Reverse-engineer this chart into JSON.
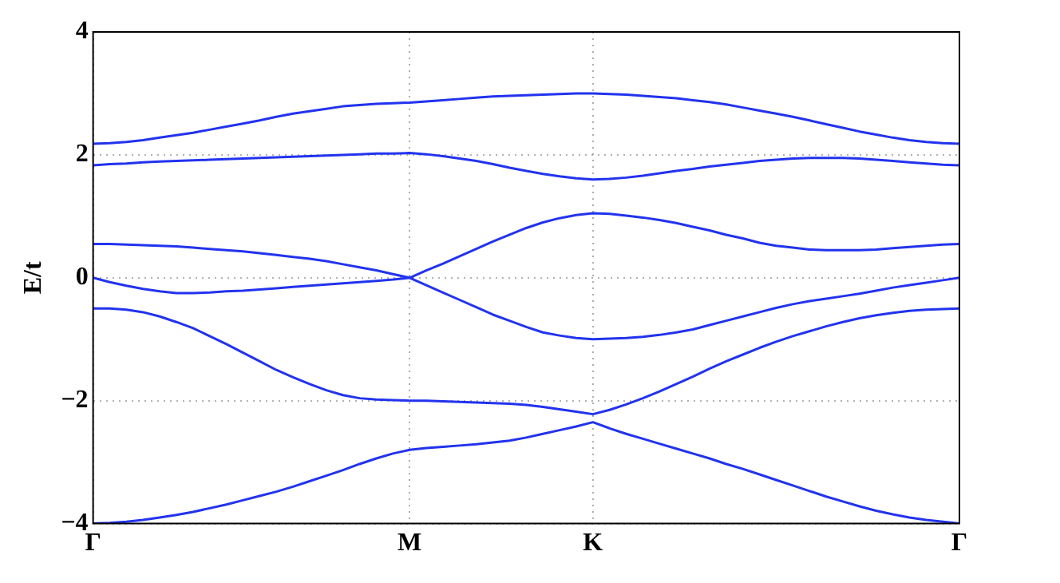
{
  "chart_data": {
    "type": "line",
    "ylabel": "E/t",
    "ylim": [
      -4,
      4
    ],
    "categories": [
      "Γ",
      null,
      null,
      null,
      null,
      null,
      null,
      null,
      null,
      null,
      null,
      null,
      null,
      null,
      null,
      null,
      null,
      null,
      null,
      "M",
      null,
      null,
      null,
      null,
      null,
      null,
      null,
      null,
      null,
      null,
      "K",
      null,
      null,
      null,
      null,
      null,
      null,
      null,
      null,
      null,
      null,
      null,
      null,
      null,
      null,
      null,
      null,
      null,
      null,
      null,
      null,
      null,
      "Γ"
    ],
    "yticks": [
      {
        "value": -4,
        "label": "−4"
      },
      {
        "value": -2,
        "label": "−2"
      },
      0,
      2,
      4
    ],
    "grid": true,
    "legend": false,
    "marker": "none",
    "line_style": "solid",
    "series": [
      {
        "color": "#2233ee",
        "values": [
          2.18,
          2.19,
          2.21,
          2.24,
          2.28,
          2.32,
          2.36,
          2.41,
          2.46,
          2.51,
          2.56,
          2.62,
          2.67,
          2.71,
          2.75,
          2.79,
          2.81,
          2.83,
          2.84,
          2.85,
          2.87,
          2.89,
          2.91,
          2.93,
          2.95,
          2.96,
          2.97,
          2.98,
          2.99,
          3.0,
          3.0,
          2.99,
          2.98,
          2.96,
          2.94,
          2.92,
          2.89,
          2.86,
          2.82,
          2.77,
          2.72,
          2.67,
          2.62,
          2.56,
          2.5,
          2.44,
          2.38,
          2.33,
          2.28,
          2.24,
          2.21,
          2.19,
          2.18
        ]
      },
      {
        "color": "#2233ee",
        "values": [
          1.83,
          1.85,
          1.86,
          1.88,
          1.89,
          1.9,
          1.91,
          1.92,
          1.93,
          1.94,
          1.95,
          1.96,
          1.97,
          1.98,
          1.99,
          2.0,
          2.01,
          2.02,
          2.02,
          2.03,
          2.01,
          1.98,
          1.94,
          1.9,
          1.85,
          1.79,
          1.74,
          1.69,
          1.65,
          1.62,
          1.6,
          1.61,
          1.63,
          1.66,
          1.7,
          1.74,
          1.77,
          1.81,
          1.84,
          1.87,
          1.9,
          1.92,
          1.94,
          1.95,
          1.95,
          1.95,
          1.94,
          1.92,
          1.9,
          1.88,
          1.86,
          1.84,
          1.83
        ]
      },
      {
        "color": "#2233ee",
        "values": [
          0.55,
          0.55,
          0.54,
          0.53,
          0.52,
          0.51,
          0.49,
          0.47,
          0.45,
          0.43,
          0.4,
          0.37,
          0.34,
          0.31,
          0.27,
          0.22,
          0.17,
          0.12,
          0.06,
          0.0,
          0.12,
          0.23,
          0.35,
          0.47,
          0.59,
          0.7,
          0.81,
          0.9,
          0.97,
          1.02,
          1.05,
          1.04,
          1.01,
          0.98,
          0.94,
          0.89,
          0.83,
          0.77,
          0.7,
          0.64,
          0.57,
          0.52,
          0.49,
          0.46,
          0.45,
          0.45,
          0.45,
          0.46,
          0.48,
          0.5,
          0.52,
          0.54,
          0.55
        ]
      },
      {
        "color": "#2233ee",
        "values": [
          0,
          -0.07,
          -0.13,
          -0.18,
          -0.22,
          -0.25,
          -0.25,
          -0.24,
          -0.22,
          -0.21,
          -0.19,
          -0.17,
          -0.15,
          -0.13,
          -0.11,
          -0.09,
          -0.07,
          -0.05,
          -0.03,
          0,
          -0.12,
          -0.24,
          -0.36,
          -0.48,
          -0.6,
          -0.7,
          -0.8,
          -0.89,
          -0.94,
          -0.98,
          -1.0,
          -0.99,
          -0.98,
          -0.96,
          -0.93,
          -0.89,
          -0.84,
          -0.77,
          -0.7,
          -0.63,
          -0.56,
          -0.49,
          -0.43,
          -0.38,
          -0.34,
          -0.3,
          -0.26,
          -0.21,
          -0.16,
          -0.12,
          -0.08,
          -0.04,
          0
        ]
      },
      {
        "color": "#2233ee",
        "values": [
          -0.5,
          -0.5,
          -0.52,
          -0.56,
          -0.63,
          -0.72,
          -0.82,
          -0.95,
          -1.08,
          -1.22,
          -1.36,
          -1.5,
          -1.62,
          -1.73,
          -1.83,
          -1.91,
          -1.96,
          -1.98,
          -1.99,
          -2.0,
          -2.0,
          -2.01,
          -2.02,
          -2.03,
          -2.04,
          -2.05,
          -2.07,
          -2.1,
          -2.14,
          -2.18,
          -2.22,
          -2.15,
          -2.06,
          -1.96,
          -1.85,
          -1.73,
          -1.61,
          -1.48,
          -1.36,
          -1.25,
          -1.14,
          -1.04,
          -0.95,
          -0.87,
          -0.79,
          -0.72,
          -0.66,
          -0.61,
          -0.57,
          -0.54,
          -0.52,
          -0.51,
          -0.5
        ]
      },
      {
        "color": "#2233ee",
        "values": [
          -4,
          -3.99,
          -3.97,
          -3.94,
          -3.9,
          -3.86,
          -3.81,
          -3.75,
          -3.69,
          -3.62,
          -3.55,
          -3.48,
          -3.4,
          -3.31,
          -3.22,
          -3.13,
          -3.03,
          -2.94,
          -2.86,
          -2.8,
          -2.77,
          -2.75,
          -2.73,
          -2.71,
          -2.68,
          -2.65,
          -2.6,
          -2.54,
          -2.48,
          -2.42,
          -2.35,
          -2.45,
          -2.54,
          -2.62,
          -2.7,
          -2.78,
          -2.86,
          -2.94,
          -3.03,
          -3.11,
          -3.2,
          -3.29,
          -3.38,
          -3.47,
          -3.56,
          -3.64,
          -3.72,
          -3.79,
          -3.85,
          -3.9,
          -3.94,
          -3.97,
          -4.0
        ]
      }
    ]
  }
}
